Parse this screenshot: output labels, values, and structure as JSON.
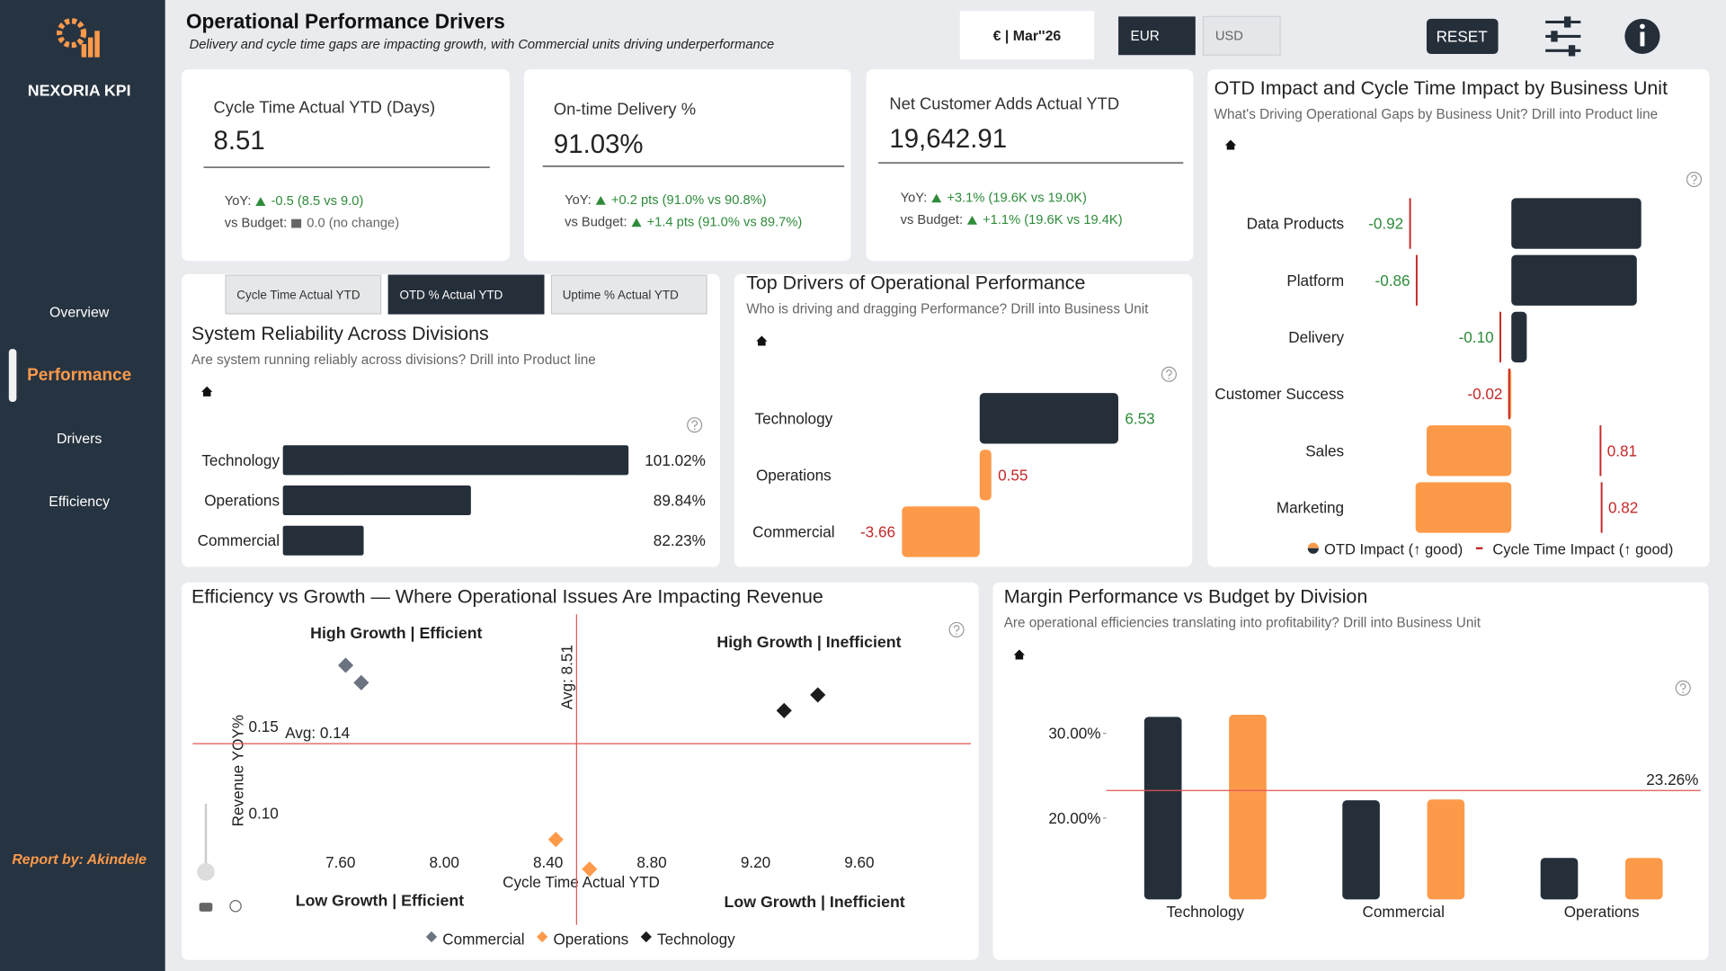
{
  "sidebar": {
    "brand": "NEXORIA KPI",
    "nav": [
      "Overview",
      "Performance",
      "Drivers",
      "Efficiency"
    ],
    "credit": "Report by: Akindele"
  },
  "header": {
    "title": "Operational Performance Drivers",
    "subtitle": "Delivery and cycle time gaps are impacting growth, with Commercial units driving underperformance",
    "period": "€ | Mar''26",
    "currencies": [
      "EUR",
      "USD"
    ],
    "reset": "RESET"
  },
  "kpis": [
    {
      "label": "Cycle Time Actual YTD (Days)",
      "value": "8.51",
      "yoy_label": "YoY:",
      "yoy": "-0.5 (8.5 vs 9.0)",
      "yoy_trend": "up",
      "budget_label": "vs Budget:",
      "budget": "0.0 (no change)",
      "budget_trend": "flat"
    },
    {
      "label": "On-time Delivery %",
      "value": "91.03%",
      "yoy_label": "YoY:",
      "yoy": "+0.2 pts (91.0% vs 90.8%)",
      "yoy_trend": "up",
      "budget_label": "vs Budget:",
      "budget": "+1.4 pts (91.0% vs 89.7%)",
      "budget_trend": "up"
    },
    {
      "label": "Net Customer Adds Actual YTD",
      "value": "19,642.91",
      "yoy_label": "YoY:",
      "yoy": "+3.1% (19.6K vs 19.0K)",
      "yoy_trend": "up",
      "budget_label": "vs Budget:",
      "budget": "+1.1% (19.6K vs 19.4K)",
      "budget_trend": "up"
    }
  ],
  "chart_data": [
    {
      "type": "bar",
      "orientation": "horizontal",
      "tabs": [
        "Cycle Time Actual YTD",
        "OTD % Actual YTD",
        "Uptime % Actual YTD"
      ],
      "title": "System Reliability Across Divisions",
      "subtitle": "Are system running reliably across divisions? Drill into Product line",
      "categories": [
        "Technology",
        "Operations",
        "Commercial"
      ],
      "values": [
        101.02,
        89.84,
        82.23
      ],
      "value_labels": [
        "101.02%",
        "89.84%",
        "82.23%"
      ],
      "xlim": [
        76.5,
        101.1
      ],
      "color": "#252f3a"
    },
    {
      "type": "bar",
      "orientation": "horizontal",
      "title": "Top Drivers of Operational Performance",
      "subtitle": "Who is driving and dragging Performance? Drill into Business Unit",
      "categories": [
        "Technology",
        "Operations",
        "Commercial"
      ],
      "values": [
        6.53,
        0.55,
        -3.66
      ],
      "colors": [
        "#252f3a",
        "#fd9a4a",
        "#fd9a4a"
      ],
      "value_label_colors": [
        "#2e8b3a",
        "#c62828",
        "#c62828"
      ],
      "xlim": [
        -7,
        7
      ]
    },
    {
      "type": "bar",
      "orientation": "horizontal",
      "title": "OTD Impact and Cycle Time Impact by Business Unit",
      "subtitle": "What's Driving Operational Gaps by Business Unit? Drill into Product line",
      "categories": [
        "Data Products",
        "Platform",
        "Delivery",
        "Customer Success",
        "Sales",
        "Marketing"
      ],
      "series": [
        {
          "name": "OTD Impact (↑ good)",
          "color_positive": "#252f3a",
          "color_negative": "#fd9a4a",
          "values": [
            1.18,
            1.14,
            0.14,
            -0.03,
            -0.77,
            -0.87
          ]
        },
        {
          "name": "Cycle Time Impact (↑ good)",
          "color": "#c62828",
          "values": [
            -0.92,
            -0.86,
            -0.1,
            -0.02,
            0.81,
            0.82
          ],
          "value_labels": [
            "-0.92",
            "-0.86",
            "-0.10",
            "-0.02",
            "0.81",
            "0.82"
          ],
          "value_label_colors": [
            "#2e8b3a",
            "#2e8b3a",
            "#2e8b3a",
            "#c62828",
            "#c62828",
            "#c62828"
          ]
        }
      ],
      "xlim": [
        -1.35,
        1.35
      ]
    },
    {
      "type": "scatter",
      "title": "Efficiency vs Growth — Where Operational Issues Are Impacting Revenue",
      "x_label": "Cycle Time Actual YTD",
      "y_label": "Revenue YOY%",
      "quadrants": [
        "High Growth | Efficient",
        "High Growth | Inefficient",
        "Low Growth | Efficient",
        "Low Growth | Inefficient"
      ],
      "series": [
        {
          "name": "Commercial",
          "color": "#6b7280",
          "x": [
            7.62,
            7.68
          ],
          "values": [
            0.185,
            0.175
          ]
        },
        {
          "name": "Operations",
          "color": "#fd9a4a",
          "x": [
            8.43,
            8.56
          ],
          "values": [
            0.085,
            0.068
          ]
        },
        {
          "name": "Technology",
          "color": "#1c1c1c",
          "x": [
            9.31,
            9.44
          ],
          "values": [
            0.159,
            0.168
          ]
        }
      ],
      "x_ref": {
        "value": 8.51,
        "label": "Avg: 8.51"
      },
      "y_ref": {
        "value": 0.14,
        "label": "Avg: 0.14"
      },
      "xlim": [
        7.03,
        10.03
      ],
      "ylim": [
        0.055,
        0.213
      ],
      "xticks": [
        {
          "value": 7.6,
          "label": "7.60"
        },
        {
          "value": 8.0,
          "label": "8.00"
        },
        {
          "value": 8.4,
          "label": "8.40"
        },
        {
          "value": 8.8,
          "label": "8.80"
        },
        {
          "value": 9.2,
          "label": "9.20"
        },
        {
          "value": 9.6,
          "label": "9.60"
        }
      ],
      "yticks": [
        {
          "value": 0.1,
          "label": "0.10"
        },
        {
          "value": 0.15,
          "label": "0.15"
        }
      ]
    },
    {
      "type": "bar",
      "orientation": "vertical",
      "title": "Margin Performance vs Budget by Division",
      "subtitle": "Are operational efficiencies translating into profitability? Drill into Business Unit",
      "categories": [
        "Technology",
        "Commercial",
        "Operations"
      ],
      "series": [
        {
          "color": "#252f3a",
          "values": [
            31.95,
            22.1,
            15.3
          ]
        },
        {
          "color": "#fd9a4a",
          "values": [
            32.2,
            22.2,
            15.3
          ]
        }
      ],
      "ref_line": {
        "value": 23.26,
        "label": "23.26%"
      },
      "ylim": [
        10.4,
        33.4
      ],
      "yticks": [
        {
          "value": 20,
          "label": "20.00%"
        },
        {
          "value": 30,
          "label": "30.00%"
        }
      ]
    }
  ]
}
